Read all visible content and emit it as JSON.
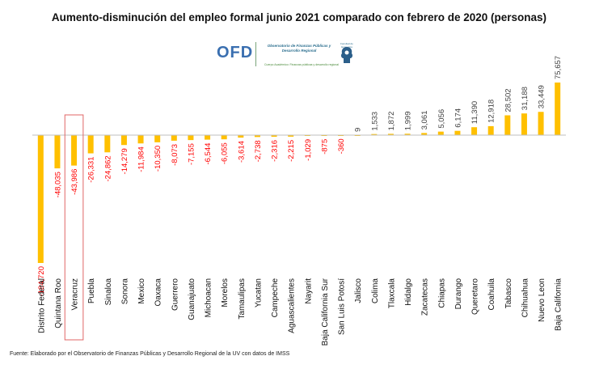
{
  "title": "Aumento-disminución  del empleo formal junio 2021 comparado  con febrero de 2020 (personas)",
  "logo": {
    "abbr": "OFD",
    "name": "Observatorio de Finanzas Públicas y Desarrollo Regional",
    "sub": "Cuerpo Académico: Finanzas públicas y desarrollo regional",
    "emblem_label": "Facultad de Economía"
  },
  "footer": "Fuente: Elaborado por el Observatorio de Finanzas Públicas y Desarrollo Regional de la UV con datos de IMSS",
  "colors": {
    "bar": "#FFC000",
    "negative_label": "#FF0000",
    "positive_label": "#404040",
    "highlight_box": "#E06666"
  },
  "chart_data": {
    "type": "bar",
    "categories": [
      "Distrito Federal",
      "Quintana Roo",
      "Veracruz",
      "Puebla",
      "Sinaloa",
      "Sonora",
      "Mexico",
      "Oaxaca",
      "Guerrero",
      "Guanajuato",
      "Michoacan",
      "Morelos",
      "Tamaulipas",
      "Yucatan",
      "Campeche",
      "Aguascalientes",
      "Nayarit",
      "Baja California Sur",
      "San Luis Potosí",
      "Jalisco",
      "Colima",
      "Tlaxcala",
      "Hidalgo",
      "Zacatecas",
      "Chiapas",
      "Durango",
      "Queretaro",
      "Coahuila",
      "Tabasco",
      "Chihuahua",
      "Nuevo Leon",
      "Baja California"
    ],
    "values": [
      -184720,
      -48035,
      -43986,
      -26331,
      -24862,
      -14279,
      -11984,
      -10350,
      -8073,
      -7155,
      -6544,
      -6055,
      -3614,
      -2738,
      -2316,
      -2215,
      -1029,
      -875,
      -360,
      9,
      1533,
      1872,
      1999,
      3061,
      5056,
      6174,
      11390,
      12918,
      28502,
      31188,
      33449,
      75657
    ],
    "labels": [
      "-184,720",
      "-48,035",
      "-43,986",
      "-26,331",
      "-24,862",
      "-14,279",
      "-11,984",
      "-10,350",
      "-8,073",
      "-7,155",
      "-6,544",
      "-6,055",
      "-3,614",
      "-2,738",
      "-2,316",
      "-2,215",
      "-1,029",
      "-875",
      "-360",
      "9",
      "1,533",
      "1,872",
      "1,999",
      "3,061",
      "5,056",
      "6,174",
      "11,390",
      "12,918",
      "28,502",
      "31,188",
      "33,449",
      "75,657"
    ],
    "highlight": "Veracruz",
    "grid": false,
    "legend": "none"
  }
}
